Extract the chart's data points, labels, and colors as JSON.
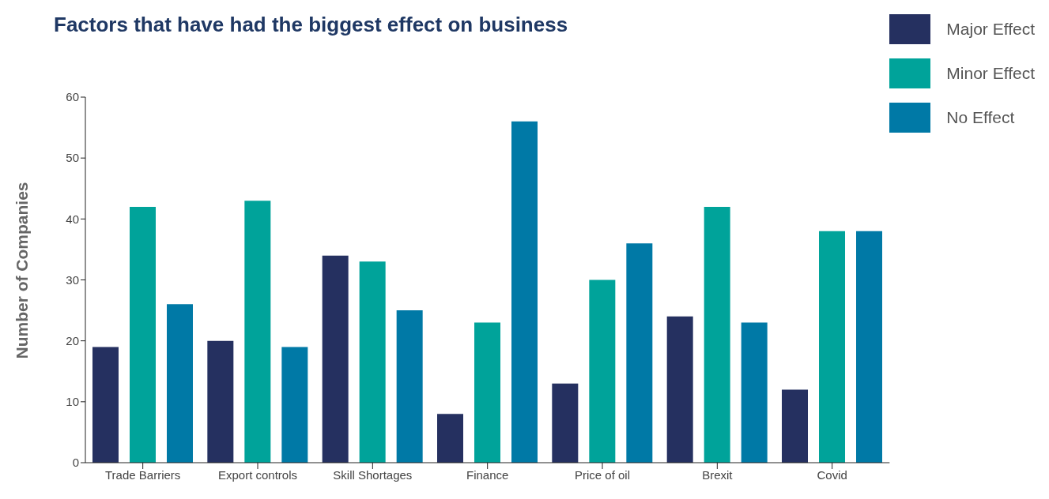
{
  "chart_data": {
    "type": "bar",
    "title": "Factors that have had the biggest effect on business",
    "ylabel": "Number of Companies",
    "categories": [
      "Trade Barriers",
      "Export controls",
      "Skill Shortages",
      "Finance",
      "Price of oil",
      "Brexit",
      "Covid"
    ],
    "series": [
      {
        "name": "Major Effect",
        "color": "#253060",
        "values": [
          19,
          20,
          34,
          8,
          13,
          24,
          12
        ]
      },
      {
        "name": "Minor Effect",
        "color": "#00a39a",
        "values": [
          42,
          43,
          33,
          23,
          30,
          42,
          38
        ]
      },
      {
        "name": "No Effect",
        "color": "#0079a6",
        "values": [
          26,
          19,
          25,
          56,
          36,
          23,
          38
        ]
      }
    ],
    "ylim": [
      0,
      60
    ],
    "yticks": [
      0,
      10,
      20,
      30,
      40,
      50,
      60
    ],
    "grid": false,
    "legend": "top right"
  }
}
